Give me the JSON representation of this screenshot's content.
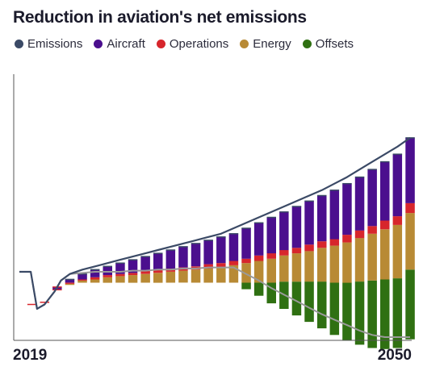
{
  "chart_data": {
    "type": "bar",
    "title": "Reduction in aviation's net emissions",
    "legend_position": "top-left",
    "grid": false,
    "x_range": [
      2019,
      2050
    ],
    "x_tick_labels": [
      "2019",
      "2050"
    ],
    "series": [
      {
        "name": "Emissions",
        "color": "#3b4a66"
      },
      {
        "name": "Aircraft",
        "color": "#4b0f8e"
      },
      {
        "name": "Operations",
        "color": "#d7262c"
      },
      {
        "name": "Energy",
        "color": "#b88a35"
      },
      {
        "name": "Offsets",
        "color": "#2f7012"
      }
    ],
    "emissions_line": {
      "x": [
        2019,
        2019.9,
        2020.4,
        2021,
        2021.8,
        2022.3,
        2023,
        2024,
        2025,
        2026,
        2027,
        2028,
        2029,
        2030,
        2031,
        2032,
        2033,
        2034,
        2035,
        2036,
        2037,
        2038,
        2039,
        2040,
        2041,
        2042,
        2043,
        2044,
        2045,
        2046,
        2047,
        2048,
        2049,
        2050
      ],
      "gross": [
        0.6,
        0.6,
        0.26,
        0.3,
        0.42,
        0.52,
        0.58,
        0.62,
        0.65,
        0.68,
        0.71,
        0.74,
        0.77,
        0.8,
        0.83,
        0.86,
        0.89,
        0.92,
        0.95,
        1.0,
        1.05,
        1.1,
        1.15,
        1.2,
        1.25,
        1.3,
        1.35,
        1.41,
        1.47,
        1.54,
        1.61,
        1.68,
        1.75,
        1.83
      ],
      "net": [
        0.6,
        0.6,
        0.26,
        0.3,
        0.42,
        0.52,
        0.58,
        0.59,
        0.6,
        0.6,
        0.6,
        0.61,
        0.61,
        0.62,
        0.62,
        0.63,
        0.63,
        0.64,
        0.64,
        0.64,
        0.58,
        0.52,
        0.45,
        0.39,
        0.33,
        0.27,
        0.21,
        0.16,
        0.11,
        0.06,
        0.02,
        0.0,
        0.0,
        0.0
      ]
    },
    "bars": {
      "years": [
        2020,
        2021,
        2022,
        2023,
        2024,
        2025,
        2026,
        2027,
        2028,
        2029,
        2030,
        2031,
        2032,
        2033,
        2034,
        2035,
        2036,
        2037,
        2038,
        2039,
        2040,
        2041,
        2042,
        2043,
        2044,
        2045,
        2046,
        2047,
        2048,
        2049,
        2050
      ],
      "total": [
        0.3,
        0.32,
        0.46,
        0.53,
        0.58,
        0.62,
        0.65,
        0.68,
        0.71,
        0.74,
        0.77,
        0.8,
        0.83,
        0.86,
        0.89,
        0.92,
        0.95,
        1.0,
        1.05,
        1.1,
        1.15,
        1.2,
        1.25,
        1.3,
        1.35,
        1.41,
        1.47,
        1.54,
        1.61,
        1.68,
        1.83
      ],
      "Offsets": [
        0,
        0,
        0,
        0,
        0,
        0,
        0,
        0,
        0,
        0,
        0,
        0,
        0,
        0,
        0,
        0,
        0,
        0.06,
        0.12,
        0.19,
        0.25,
        0.31,
        0.37,
        0.43,
        0.48,
        0.53,
        0.58,
        0.62,
        0.64,
        0.64,
        0.64
      ],
      "Energy": [
        0,
        0,
        0,
        0.01,
        0.02,
        0.03,
        0.05,
        0.06,
        0.07,
        0.08,
        0.09,
        0.1,
        0.11,
        0.12,
        0.13,
        0.14,
        0.16,
        0.18,
        0.2,
        0.22,
        0.24,
        0.26,
        0.28,
        0.31,
        0.34,
        0.37,
        0.4,
        0.43,
        0.46,
        0.49,
        0.52
      ],
      "Operations": [
        0,
        0,
        0.01,
        0.01,
        0.01,
        0.02,
        0.02,
        0.02,
        0.02,
        0.03,
        0.03,
        0.03,
        0.03,
        0.03,
        0.04,
        0.04,
        0.04,
        0.04,
        0.05,
        0.05,
        0.05,
        0.05,
        0.06,
        0.06,
        0.06,
        0.07,
        0.07,
        0.07,
        0.08,
        0.08,
        0.09
      ],
      "Aircraft": [
        0,
        0,
        0.02,
        0.03,
        0.05,
        0.07,
        0.08,
        0.1,
        0.12,
        0.13,
        0.15,
        0.17,
        0.19,
        0.21,
        0.22,
        0.24,
        0.25,
        0.28,
        0.3,
        0.33,
        0.35,
        0.38,
        0.4,
        0.42,
        0.45,
        0.47,
        0.49,
        0.52,
        0.54,
        0.57,
        0.6
      ]
    }
  }
}
